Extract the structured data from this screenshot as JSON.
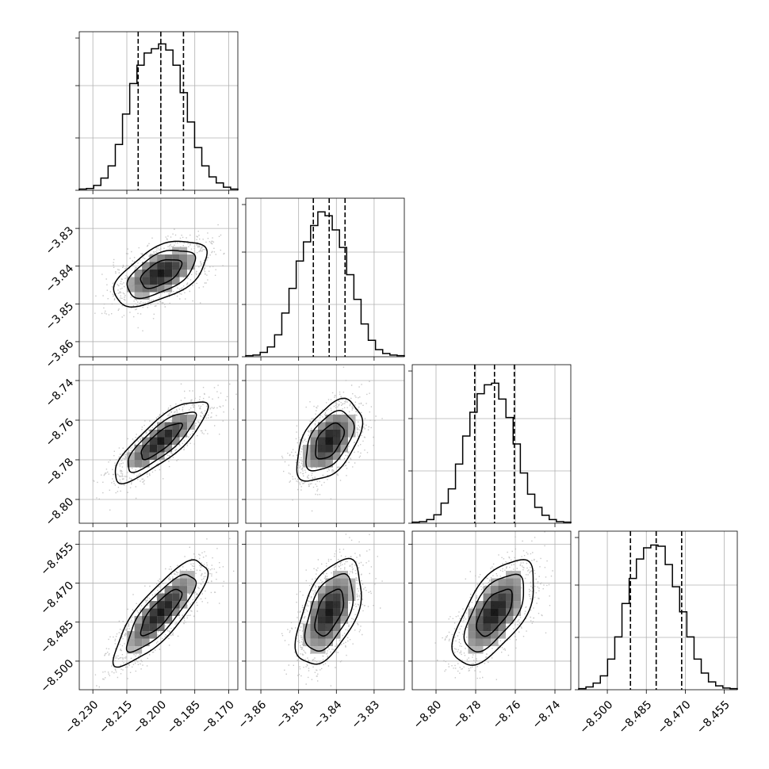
{
  "chart_data": {
    "type": "corner",
    "grid": true,
    "parameters": [
      {
        "ticks": [
          -8.23,
          -8.215,
          -8.2,
          -8.185,
          -8.17
        ],
        "tick_labels": [
          "−8.230",
          "−8.215",
          "−8.200",
          "−8.185",
          "−8.170"
        ],
        "range": [
          -8.236,
          -8.166
        ],
        "quantiles": [
          -8.21,
          -8.2,
          -8.19
        ]
      },
      {
        "ticks": [
          -3.86,
          -3.85,
          -3.84,
          -3.83
        ],
        "tick_labels": [
          "−3.86",
          "−3.85",
          "−3.84",
          "−3.83"
        ],
        "range": [
          -3.864,
          -3.822
        ],
        "quantiles": [
          -3.8461,
          -3.8419,
          -3.8377
        ]
      },
      {
        "ticks": [
          -8.8,
          -8.78,
          -8.76,
          -8.74
        ],
        "tick_labels": [
          "−8.80",
          "−8.78",
          "−8.76",
          "−8.74"
        ],
        "range": [
          -8.812,
          -8.732
        ],
        "quantiles": [
          -8.7805,
          -8.7705,
          -8.7605
        ]
      },
      {
        "ticks": [
          -8.5,
          -8.485,
          -8.47,
          -8.455
        ],
        "tick_labels": [
          "−8.500",
          "−8.485",
          "−8.470",
          "−8.455"
        ],
        "range": [
          -8.511,
          -8.45
        ],
        "quantiles": [
          -8.4911,
          -8.4812,
          -8.4714
        ]
      }
    ],
    "histograms": [
      {
        "param": 0,
        "counts": [
          2,
          3,
          8,
          20,
          40,
          75,
          125,
          175,
          205,
          225,
          232,
          240,
          230,
          205,
          160,
          112,
          70,
          40,
          22,
          12,
          5,
          2
        ],
        "ymax": 260
      },
      {
        "param": 1,
        "counts": [
          2,
          3,
          8,
          18,
          40,
          80,
          125,
          175,
          210,
          240,
          265,
          258,
          232,
          200,
          150,
          105,
          60,
          30,
          13,
          6,
          3,
          2
        ],
        "ymax": 290
      },
      {
        "param": 2,
        "counts": [
          2,
          3,
          7,
          16,
          38,
          65,
          112,
          165,
          210,
          245,
          262,
          265,
          235,
          200,
          150,
          95,
          55,
          30,
          15,
          7,
          3,
          2
        ],
        "ymax": 300
      },
      {
        "param": 3,
        "counts": [
          2,
          5,
          12,
          25,
          55,
          95,
          155,
          200,
          235,
          255,
          260,
          258,
          225,
          185,
          140,
          95,
          55,
          30,
          14,
          7,
          3,
          2
        ],
        "ymax": 285
      }
    ],
    "pairs": [
      {
        "x_param": 0,
        "y_param": 1,
        "rho": 0.55
      },
      {
        "x_param": 0,
        "y_param": 2,
        "rho": 0.82
      },
      {
        "x_param": 1,
        "y_param": 2,
        "rho": 0.5
      },
      {
        "x_param": 0,
        "y_param": 3,
        "rho": 0.82
      },
      {
        "x_param": 1,
        "y_param": 3,
        "rho": 0.52
      },
      {
        "x_param": 2,
        "y_param": 3,
        "rho": 0.62
      }
    ],
    "colors": {
      "line": "#000000",
      "points": "#b4b4b4",
      "grid": "#b0b0b0"
    }
  }
}
